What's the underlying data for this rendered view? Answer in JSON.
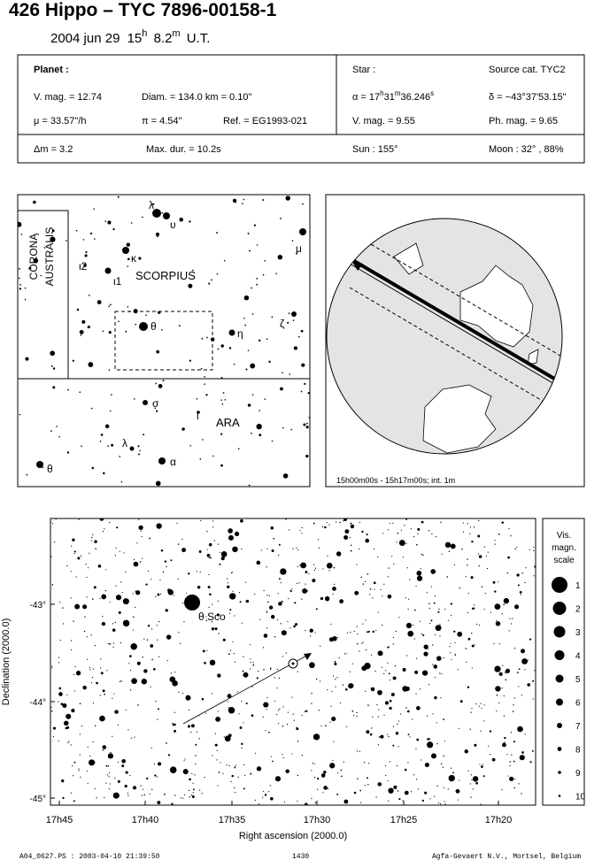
{
  "header": {
    "title": "426 Hippo  –  TYC 7896-00158-1",
    "date": "2004 jun 29",
    "hour": "15",
    "hour_unit": "h",
    "minute": "8.2",
    "minute_unit": "m",
    "time_zone": "U.T."
  },
  "planet": {
    "heading": "Planet :",
    "v_mag": "V. mag. = 12.74",
    "diameter": "Diam. = 134.0 km = 0.10\"",
    "motion": "μ = 33.57\"/h",
    "parallax": "π =  4.54\"",
    "ref": "Ref. = EG1993-021",
    "delta_mag": "Δm = 3.2",
    "max_duration": "Max. dur. = 10.2s"
  },
  "star": {
    "heading": "Star :",
    "source": "Source cat.  TYC2",
    "ra_prefix": "α = 17",
    "ra_h": "h",
    "ra_min": "31",
    "ra_m": "m",
    "ra_sec": "36.246",
    "ra_s": "s",
    "dec": "δ = −43°37'53.15\"",
    "v_mag": "V. mag. =  9.55",
    "ph_mag": "Ph. mag. =  9.65",
    "sun": "Sun : 155°",
    "moon": "Moon :  32° , 88%"
  },
  "finder_map": {
    "constellations": [
      "CORONA",
      "AUSTRALIS",
      "SCORPIUS",
      "ARA"
    ],
    "star_labels": [
      "λ",
      "υ",
      "κ",
      "ι2",
      "ι1",
      "μ",
      "θ",
      "η",
      "ζ",
      "σ",
      "ι",
      "λ",
      "α",
      "θ"
    ]
  },
  "globe": {
    "caption": "15h00m00s - 15h17m00s; int.  1m"
  },
  "star_chart": {
    "x_label": "Right ascension (2000.0)",
    "y_label": "Declination (2000.0)",
    "target": "θ Sco",
    "x_ticks": [
      "17h45",
      "17h40",
      "17h35",
      "17h30",
      "17h25",
      "17h20"
    ],
    "y_ticks": [
      "-43°",
      "-44°",
      "-45°"
    ]
  },
  "scale": {
    "title": [
      "Vis.",
      "magn.",
      "scale"
    ],
    "magnitudes": [
      "1",
      "2",
      "3",
      "4",
      "5",
      "6",
      "7",
      "8",
      "9",
      "10"
    ]
  },
  "footer": {
    "file": "A04_0627.PS : 2003-04-10 21:39:50",
    "number": "1430",
    "credit": "Agfa-Gevaert N.V., Mortsel, Belgium"
  }
}
